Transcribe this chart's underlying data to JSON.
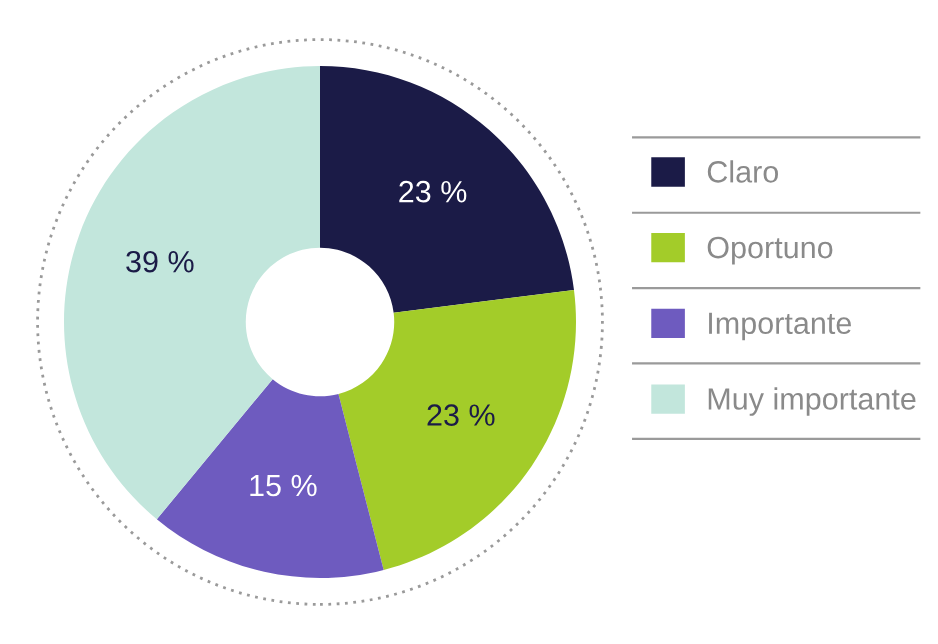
{
  "chart_data": {
    "type": "donut",
    "categories": [
      "Claro",
      "Oportuno",
      "Importante",
      "Muy importante"
    ],
    "values": [
      23,
      23,
      15,
      39
    ],
    "colors": [
      "#1b1b47",
      "#a3cc29",
      "#6e5bbf",
      "#c2e6dc"
    ],
    "value_labels": [
      "23 %",
      "23 %",
      "15 %",
      "39 %"
    ],
    "legend": "right"
  }
}
